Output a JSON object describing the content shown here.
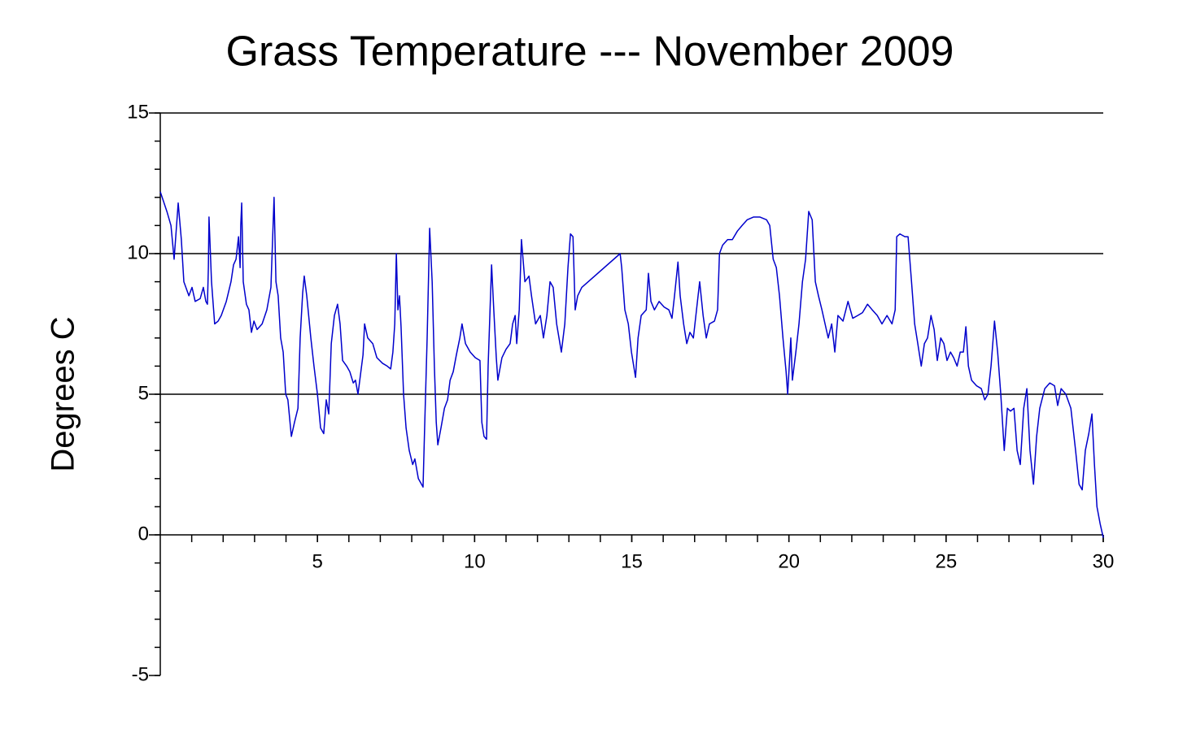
{
  "chart_data": {
    "type": "line",
    "title": "Grass Temperature --- November 2009",
    "y_label": "Degrees C",
    "x": [
      0,
      0.21,
      0.34,
      0.44,
      0.57,
      0.67,
      0.75,
      0.91,
      1.01,
      1.11,
      1.27,
      1.37,
      1.45,
      1.5,
      1.53,
      1.55,
      1.63,
      1.73,
      1.84,
      1.94,
      2.1,
      2.25,
      2.33,
      2.41,
      2.49,
      2.54,
      2.56,
      2.59,
      2.64,
      2.74,
      2.82,
      2.9,
      2.98,
      3.08,
      3.24,
      3.39,
      3.52,
      3.62,
      3.68,
      3.75,
      3.83,
      3.91,
      3.99,
      4.06,
      4.17,
      4.27,
      4.38,
      4.45,
      4.53,
      4.58,
      4.66,
      4.79,
      4.89,
      5,
      5.1,
      5.2,
      5.28,
      5.36,
      5.44,
      5.54,
      5.64,
      5.72,
      5.8,
      5.93,
      6.03,
      6.14,
      6.21,
      6.29,
      6.37,
      6.45,
      6.5,
      6.6,
      6.76,
      6.89,
      7.07,
      7.22,
      7.33,
      7.4,
      7.46,
      7.51,
      7.56,
      7.61,
      7.66,
      7.74,
      7.82,
      7.92,
      8.03,
      8.1,
      8.21,
      8.36,
      8.41,
      8.49,
      8.57,
      8.65,
      8.72,
      8.78,
      8.83,
      8.93,
      9.04,
      9.14,
      9.22,
      9.32,
      9.42,
      9.53,
      9.6,
      9.71,
      9.86,
      10.02,
      10.17,
      10.23,
      10.3,
      10.38,
      10.43,
      10.54,
      10.61,
      10.69,
      10.74,
      10.87,
      11,
      11.13,
      11.21,
      11.29,
      11.34,
      11.42,
      11.49,
      11.6,
      11.73,
      11.81,
      11.94,
      12.09,
      12.19,
      12.3,
      12.4,
      12.5,
      12.61,
      12.76,
      12.87,
      12.97,
      13.05,
      13.13,
      13.2,
      13.28,
      13.41,
      14.63,
      14.68,
      14.78,
      14.89,
      14.99,
      15.12,
      15.2,
      15.3,
      15.46,
      15.53,
      15.61,
      15.72,
      15.87,
      16.03,
      16.18,
      16.28,
      16.36,
      16.47,
      16.54,
      16.65,
      16.75,
      16.85,
      16.96,
      17.06,
      17.16,
      17.27,
      17.37,
      17.47,
      17.63,
      17.73,
      17.79,
      17.89,
      18.05,
      18.2,
      18.36,
      18.51,
      18.67,
      18.87,
      19.08,
      19.29,
      19.39,
      19.5,
      19.6,
      19.7,
      19.81,
      19.91,
      19.96,
      20.01,
      20.06,
      20.11,
      20.22,
      20.32,
      20.43,
      20.53,
      20.63,
      20.74,
      20.84,
      20.94,
      21.05,
      21.15,
      21.25,
      21.36,
      21.46,
      21.56,
      21.72,
      21.88,
      22.03,
      22.19,
      22.34,
      22.5,
      22.65,
      22.81,
      22.96,
      23.12,
      23.28,
      23.38,
      23.43,
      23.53,
      23.69,
      23.79,
      23.9,
      24,
      24.1,
      24.21,
      24.31,
      24.41,
      24.52,
      24.62,
      24.72,
      24.83,
      24.93,
      25.03,
      25.14,
      25.24,
      25.35,
      25.45,
      25.55,
      25.63,
      25.71,
      25.81,
      25.97,
      26.12,
      26.23,
      26.33,
      26.43,
      26.54,
      26.64,
      26.74,
      26.85,
      26.95,
      27.05,
      27.16,
      27.26,
      27.36,
      27.47,
      27.57,
      27.67,
      27.78,
      27.88,
      27.98,
      28.14,
      28.3,
      28.45,
      28.55,
      28.66,
      28.81,
      28.97,
      29.12,
      29.23,
      29.33,
      29.43,
      29.54,
      29.64,
      29.72,
      29.8,
      29.9,
      30
    ],
    "series": [
      {
        "name": "Grass Temperature",
        "color": "#0000cc",
        "values": [
          12.2,
          11.5,
          11.0,
          9.8,
          11.8,
          10.5,
          9.0,
          8.5,
          8.8,
          8.3,
          8.4,
          8.8,
          8.3,
          8.2,
          9.5,
          11.3,
          9.0,
          7.5,
          7.6,
          7.8,
          8.3,
          9.0,
          9.6,
          9.8,
          10.6,
          9.5,
          11.0,
          11.8,
          9.0,
          8.2,
          8.0,
          7.2,
          7.6,
          7.3,
          7.5,
          8.0,
          8.8,
          12.0,
          9.0,
          8.5,
          7.0,
          6.5,
          5.0,
          4.8,
          3.5,
          4.0,
          4.5,
          7.0,
          8.6,
          9.2,
          8.5,
          7.0,
          6.0,
          5.0,
          3.8,
          3.6,
          4.8,
          4.3,
          6.8,
          7.8,
          8.2,
          7.5,
          6.2,
          6.0,
          5.8,
          5.4,
          5.5,
          5.0,
          5.7,
          6.4,
          7.5,
          7.0,
          6.8,
          6.3,
          6.1,
          6.0,
          5.9,
          6.5,
          7.5,
          10.0,
          8.0,
          8.5,
          7.4,
          5.0,
          3.8,
          3.0,
          2.5,
          2.7,
          2.0,
          1.7,
          3.8,
          7.0,
          10.9,
          9.0,
          6.0,
          4.0,
          3.2,
          3.8,
          4.5,
          4.8,
          5.5,
          5.8,
          6.4,
          7.0,
          7.5,
          6.8,
          6.5,
          6.3,
          6.2,
          4.0,
          3.5,
          3.4,
          6.0,
          9.6,
          8.0,
          6.3,
          5.5,
          6.3,
          6.6,
          6.8,
          7.5,
          7.8,
          6.8,
          8.0,
          10.5,
          9.0,
          9.2,
          8.5,
          7.5,
          7.8,
          7.0,
          7.8,
          9.0,
          8.8,
          7.5,
          6.5,
          7.5,
          9.5,
          10.7,
          10.6,
          8.0,
          8.5,
          8.8,
          10.0,
          9.5,
          8.0,
          7.5,
          6.5,
          5.6,
          7.0,
          7.8,
          8.0,
          9.3,
          8.3,
          8.0,
          8.3,
          8.1,
          8.0,
          7.7,
          8.5,
          9.7,
          8.5,
          7.5,
          6.8,
          7.2,
          7.0,
          8.0,
          9.0,
          7.8,
          7.0,
          7.5,
          7.6,
          8.0,
          10.0,
          10.3,
          10.5,
          10.5,
          10.8,
          11.0,
          11.2,
          11.3,
          11.3,
          11.2,
          11.0,
          9.8,
          9.5,
          8.5,
          7.0,
          5.8,
          5.0,
          6.0,
          7.0,
          5.5,
          6.5,
          7.5,
          9.0,
          9.8,
          11.5,
          11.2,
          9.0,
          8.5,
          8.0,
          7.5,
          7.0,
          7.5,
          6.5,
          7.8,
          7.6,
          8.3,
          7.7,
          7.8,
          7.9,
          8.2,
          8.0,
          7.8,
          7.5,
          7.8,
          7.5,
          8.0,
          10.6,
          10.7,
          10.6,
          10.6,
          9.0,
          7.5,
          6.8,
          6.0,
          6.8,
          7.0,
          7.8,
          7.3,
          6.2,
          7.0,
          6.8,
          6.2,
          6.5,
          6.3,
          6.0,
          6.5,
          6.5,
          7.4,
          6.0,
          5.5,
          5.3,
          5.2,
          4.8,
          5.0,
          6.0,
          7.6,
          6.5,
          5.0,
          3.0,
          4.5,
          4.4,
          4.5,
          3.0,
          2.5,
          4.5,
          5.2,
          3.0,
          1.8,
          3.5,
          4.5,
          5.2,
          5.4,
          5.3,
          4.6,
          5.2,
          5.0,
          4.5,
          3.0,
          1.8,
          1.6,
          3.0,
          3.6,
          4.3,
          2.5,
          1.0,
          0.4,
          -0.1
        ]
      }
    ],
    "xlim": [
      0,
      30
    ],
    "xticks": [
      5,
      10,
      15,
      20,
      25,
      30
    ],
    "ylim": [
      -5,
      15
    ],
    "yticks": [
      -5,
      0,
      5,
      10,
      15
    ],
    "grid": true
  }
}
